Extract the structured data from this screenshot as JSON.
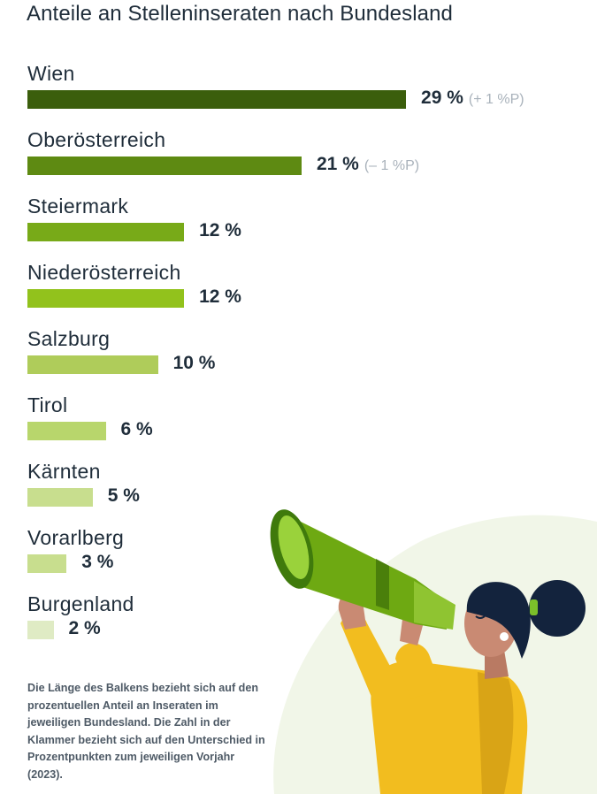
{
  "title": "Anteile an Stelleninseraten nach Bundesland",
  "chart_data": {
    "type": "bar",
    "orientation": "horizontal",
    "title": "Anteile an Stelleninseraten nach Bundesland",
    "categories": [
      "Wien",
      "Oberösterreich",
      "Steiermark",
      "Niederösterreich",
      "Salzburg",
      "Tirol",
      "Kärnten",
      "Vorarlberg",
      "Burgenland"
    ],
    "values": [
      29,
      21,
      12,
      12,
      10,
      6,
      5,
      3,
      2
    ],
    "value_labels": [
      "29 %",
      "21 %",
      "12 %",
      "12 %",
      "10 %",
      "6 %",
      "5 %",
      "3 %",
      "2 %"
    ],
    "change_labels": [
      "(+ 1 %P)",
      "(– 1 %P)",
      "",
      "",
      "",
      "",
      "",
      "",
      ""
    ],
    "unit": "%",
    "colors": [
      "#3b5e0c",
      "#5e8a12",
      "#78aa18",
      "#92c21c",
      "#afcc5a",
      "#b8d66c",
      "#c8de8e",
      "#c8de8e",
      "#dfebc4"
    ],
    "grid": false,
    "legend": "none"
  },
  "footnote": "Die Länge des Balkens bezieht sich auf den prozentuellen Anteil an Inseraten im jeweiligen Bundesland. Die Zahl in der Klammer bezieht sich auf den Unterschied in Prozentpunkten zum jeweiligen Vorjahr (2023)."
}
